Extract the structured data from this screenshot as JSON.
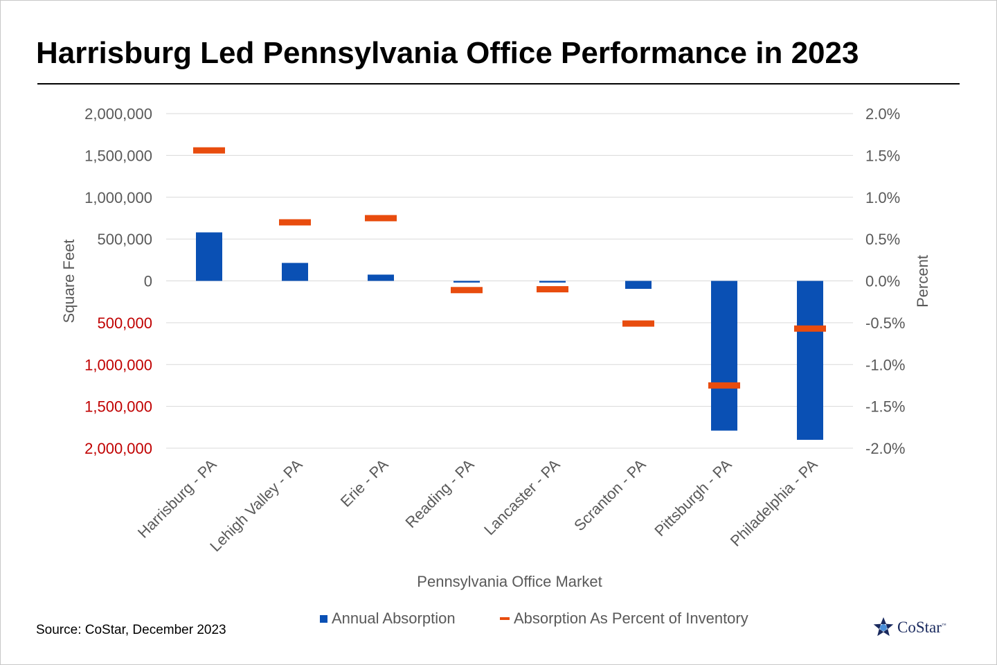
{
  "title": "Harrisburg Led Pennsylvania Office Performance in 2023",
  "source": "Source: CoStar, December 2023",
  "logo": {
    "text": "CoStar",
    "tm": "™"
  },
  "colors": {
    "bar": "#0a50b4",
    "marker": "#e84c0e",
    "negative_tick": "#c00000",
    "axis_text": "#595959",
    "grid": "#d9d9d9"
  },
  "chart_data": {
    "type": "bar",
    "xlabel": "Pennsylvania Office Market",
    "ylabel": "Square Feet",
    "y2label": "Percent",
    "ylim": [
      -2000000,
      2000000
    ],
    "y2lim": [
      -2.0,
      2.0
    ],
    "grid": true,
    "legend_position": "bottom",
    "categories": [
      "Harrisburg - PA",
      "Lehigh Valley - PA",
      "Erie - PA",
      "Reading - PA",
      "Lancaster - PA",
      "Scranton - PA",
      "Pittsburgh - PA",
      "Philadelphia - PA"
    ],
    "yticks": [
      {
        "value": 2000000,
        "label": "2,000,000",
        "negative": false
      },
      {
        "value": 1500000,
        "label": "1,500,000",
        "negative": false
      },
      {
        "value": 1000000,
        "label": "1,000,000",
        "negative": false
      },
      {
        "value": 500000,
        "label": "500,000",
        "negative": false
      },
      {
        "value": 0,
        "label": "0",
        "negative": false
      },
      {
        "value": -500000,
        "label": "500,000",
        "negative": true
      },
      {
        "value": -1000000,
        "label": "1,000,000",
        "negative": true
      },
      {
        "value": -1500000,
        "label": "1,500,000",
        "negative": true
      },
      {
        "value": -2000000,
        "label": "2,000,000",
        "negative": true
      }
    ],
    "y2ticks": [
      {
        "value": 2.0,
        "label": "2.0%"
      },
      {
        "value": 1.5,
        "label": "1.5%"
      },
      {
        "value": 1.0,
        "label": "1.0%"
      },
      {
        "value": 0.5,
        "label": "0.5%"
      },
      {
        "value": 0.0,
        "label": "0.0%"
      },
      {
        "value": -0.5,
        "label": "-0.5%"
      },
      {
        "value": -1.0,
        "label": "-1.0%"
      },
      {
        "value": -1.5,
        "label": "-1.5%"
      },
      {
        "value": -2.0,
        "label": "-2.0%"
      }
    ],
    "series": [
      {
        "name": "Annual Absorption",
        "type": "bar",
        "axis": "left",
        "values": [
          580000,
          215000,
          75000,
          -20000,
          -20000,
          -95000,
          -1790000,
          -1900000
        ]
      },
      {
        "name": "Absorption As Percent of Inventory",
        "type": "marker",
        "axis": "right",
        "values": [
          1.56,
          0.7,
          0.75,
          -0.11,
          -0.1,
          -0.51,
          -1.25,
          -0.57
        ]
      }
    ]
  }
}
